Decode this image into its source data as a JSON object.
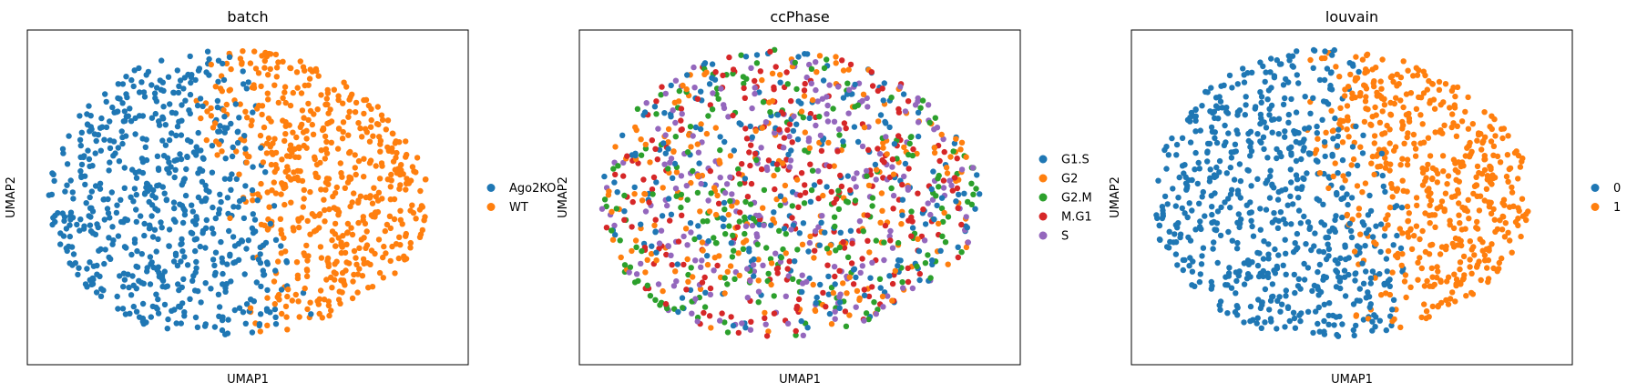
{
  "chart_data": [
    {
      "type": "scatter",
      "title": "batch",
      "xlabel": "UMAP1",
      "ylabel": "UMAP2",
      "grid": false,
      "legend_position": "right",
      "categories": [
        "Ago2KO",
        "WT"
      ],
      "colors": [
        "#1f77b4",
        "#ff7f0e"
      ],
      "n_points": 1200,
      "coloring_rule": "split"
    },
    {
      "type": "scatter",
      "title": "ccPhase",
      "xlabel": "UMAP1",
      "ylabel": "UMAP2",
      "grid": false,
      "legend_position": "right",
      "categories": [
        "G1.S",
        "G2",
        "G2.M",
        "M.G1",
        "S"
      ],
      "colors": [
        "#1f77b4",
        "#ff7f0e",
        "#2ca02c",
        "#d62728",
        "#9467bd"
      ],
      "n_points": 1200,
      "coloring_rule": "mixed"
    },
    {
      "type": "scatter",
      "title": "louvain",
      "xlabel": "UMAP1",
      "ylabel": "UMAP2",
      "grid": false,
      "legend_position": "right",
      "categories": [
        "0",
        "1"
      ],
      "colors": [
        "#1f77b4",
        "#ff7f0e"
      ],
      "n_points": 1200,
      "coloring_rule": "split"
    }
  ]
}
